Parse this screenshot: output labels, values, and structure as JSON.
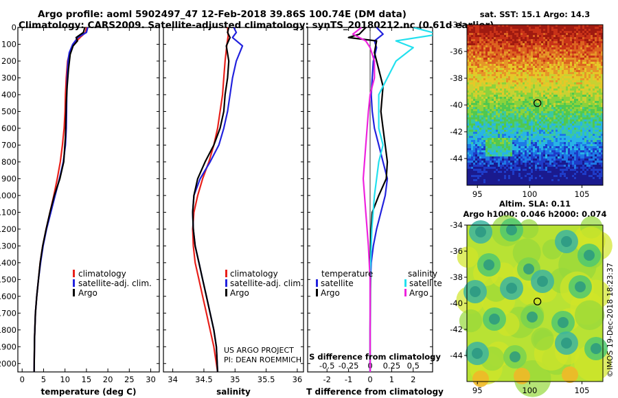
{
  "title_line1": "Argo profile: aoml 5902497_47 12-Feb-2018 39.86S 100.74E (DM data)",
  "title_line2": "Climatology: CARS2009. Satellite-adjusted climatology: synTS_20180212.nc (0.61d earlier)",
  "colors": {
    "climatology": "#e8201a",
    "satellite_adj": "#2222dd",
    "argo": "#000000",
    "salinity_satellite": "#22e0ee",
    "salinity_argo": "#ee22dd"
  },
  "credit": {
    "line1": "US ARGO PROJECT",
    "line2": "PI: DEAN ROEMMICH"
  },
  "imos_stamp": "©IMOS 19-Dec-2018 18:23:37",
  "legend_main": {
    "climatology": "climatology",
    "satellite": "satellite-adj. clim.",
    "argo": "Argo"
  },
  "legend_diff": {
    "temperature": "temperature",
    "salinity": "salinity",
    "satellite": "satellite",
    "argo": "Argo"
  },
  "map_sst": {
    "title": "sat. SST: 15.1 Argo: 14.3",
    "lat_ticks": [
      -34,
      -36,
      -38,
      -40,
      -42,
      -44
    ],
    "lon_ticks": [
      95,
      100,
      105
    ],
    "xlim": [
      94,
      107
    ],
    "ylim": [
      -46,
      -34
    ],
    "profile_location": [
      100.74,
      -39.86
    ]
  },
  "map_sla": {
    "title1": "Altim. SLA: 0.11",
    "title2": "Argo h1000: 0.046 h2000: 0.074",
    "lat_ticks": [
      -34,
      -36,
      -38,
      -40,
      -42,
      -44
    ],
    "lon_ticks": [
      95,
      100,
      105
    ],
    "xlim": [
      94,
      107
    ],
    "ylim": [
      -46,
      -34
    ],
    "profile_location": [
      100.74,
      -39.86
    ]
  },
  "chart_data": [
    {
      "type": "line",
      "name": "temperature",
      "xlabel": "temperature (deg C)",
      "ylabel": "",
      "xlim": [
        -1,
        32
      ],
      "ylim": [
        2050,
        0
      ],
      "xticks": [
        0,
        5,
        10,
        15,
        20,
        25,
        30
      ],
      "yticks": [
        0,
        100,
        200,
        300,
        400,
        500,
        600,
        700,
        800,
        900,
        1000,
        1100,
        1200,
        1300,
        1400,
        1500,
        1600,
        1700,
        1800,
        1900,
        2000
      ],
      "series": [
        {
          "name": "climatology",
          "color": "#e8201a",
          "x": [
            15.0,
            14.8,
            13.5,
            12.0,
            11.1,
            10.6,
            10.3,
            10.1,
            10.0,
            9.8,
            9.4,
            8.9,
            8.2,
            7.4,
            6.5,
            5.6,
            4.8,
            4.2,
            3.8,
            3.4,
            3.1,
            2.9,
            2.8
          ],
          "y": [
            0,
            30,
            60,
            100,
            150,
            200,
            300,
            400,
            500,
            600,
            700,
            800,
            900,
            1000,
            1100,
            1200,
            1300,
            1400,
            1500,
            1600,
            1700,
            1850,
            2050
          ]
        },
        {
          "name": "satellite-adj. clim.",
          "color": "#2222dd",
          "x": [
            15.3,
            15.0,
            13.0,
            11.8,
            11.0,
            10.7,
            10.5,
            10.4,
            10.35,
            10.3,
            10.1,
            9.6,
            8.7,
            7.7,
            6.7,
            5.7,
            4.9,
            4.3,
            3.8,
            3.4,
            3.1,
            2.9,
            2.8
          ],
          "y": [
            0,
            30,
            60,
            100,
            150,
            200,
            300,
            400,
            500,
            600,
            700,
            800,
            900,
            1000,
            1100,
            1200,
            1300,
            1400,
            1500,
            1600,
            1700,
            1850,
            2050
          ]
        },
        {
          "name": "Argo",
          "color": "#000000",
          "x": [
            14.6,
            14.3,
            12.6,
            12.9,
            11.9,
            11.2,
            10.8,
            10.5,
            10.3,
            10.2,
            10.1,
            9.7,
            8.8,
            7.5,
            6.5,
            5.6,
            4.8,
            4.2,
            3.8,
            3.4,
            3.1,
            2.9,
            2.8
          ],
          "y": [
            0,
            30,
            60,
            80,
            110,
            160,
            250,
            350,
            450,
            550,
            650,
            800,
            900,
            1000,
            1100,
            1200,
            1300,
            1400,
            1500,
            1600,
            1700,
            1850,
            2050
          ]
        }
      ]
    },
    {
      "type": "line",
      "name": "salinity",
      "xlabel": "salinity",
      "ylabel": "",
      "xlim": [
        33.85,
        36.1
      ],
      "ylim": [
        2050,
        0
      ],
      "xticks": [
        34,
        34.5,
        35,
        35.5,
        36
      ],
      "xticklabels": [
        "34",
        "34.5",
        "35",
        "35.5",
        "36"
      ],
      "series": [
        {
          "name": "climatology",
          "color": "#e8201a",
          "x": [
            34.88,
            34.89,
            34.87,
            34.84,
            34.82,
            34.8,
            34.76,
            34.72,
            34.66,
            34.58,
            34.48,
            34.4,
            34.34,
            34.32,
            34.33,
            34.36,
            34.42,
            34.48,
            34.54,
            34.6,
            34.66,
            34.7,
            34.72
          ],
          "y": [
            0,
            50,
            100,
            200,
            300,
            400,
            500,
            600,
            700,
            800,
            900,
            1000,
            1100,
            1200,
            1300,
            1400,
            1500,
            1600,
            1700,
            1800,
            1900,
            2000,
            2050
          ]
        },
        {
          "name": "satellite-adj. clim.",
          "color": "#2222dd",
          "x": [
            34.98,
            35.02,
            34.96,
            35.12,
            35.02,
            34.96,
            34.92,
            34.88,
            34.82,
            34.74,
            34.6,
            34.44,
            34.34,
            34.32,
            34.33,
            34.36,
            34.42,
            34.48,
            34.54,
            34.6,
            34.66,
            34.7,
            34.72
          ],
          "y": [
            0,
            30,
            60,
            110,
            200,
            300,
            400,
            500,
            600,
            700,
            800,
            900,
            1000,
            1100,
            1200,
            1300,
            1400,
            1500,
            1600,
            1700,
            1800,
            1900,
            2050
          ]
        },
        {
          "name": "Argo",
          "color": "#000000",
          "x": [
            34.9,
            34.88,
            34.92,
            34.86,
            34.9,
            34.88,
            34.84,
            34.82,
            34.76,
            34.66,
            34.52,
            34.4,
            34.34,
            34.32,
            34.33,
            34.36,
            34.42,
            34.48,
            34.54,
            34.6,
            34.66,
            34.7,
            34.72
          ],
          "y": [
            0,
            30,
            60,
            110,
            200,
            300,
            400,
            500,
            600,
            700,
            800,
            900,
            1000,
            1100,
            1200,
            1300,
            1400,
            1500,
            1600,
            1700,
            1800,
            1900,
            2050
          ]
        }
      ]
    },
    {
      "type": "line",
      "name": "difference",
      "xlabel": "T difference from climatology",
      "xlabel_top": "S difference from climatology",
      "xlim": [
        -2.9,
        2.9
      ],
      "ylim": [
        2050,
        0
      ],
      "xticks": [
        -2,
        -1,
        0,
        1,
        2
      ],
      "top_xticks": [
        -0.5,
        -0.25,
        0,
        0.25,
        0.5
      ],
      "top_xticklabels": [
        "-0.5",
        "-0.25",
        "0",
        "0.25",
        "0.5"
      ],
      "series": [
        {
          "name": "temperature satellite",
          "color": "#2222dd",
          "x": [
            0.3,
            0.6,
            0.2,
            0.3,
            0.15,
            0.1,
            0.05,
            0.1,
            0.2,
            0.4,
            0.6,
            0.8,
            0.7,
            0.5,
            0.3,
            0.15,
            0.05,
            0.02,
            0.01,
            0,
            0
          ],
          "y": [
            0,
            40,
            80,
            120,
            200,
            300,
            400,
            500,
            600,
            700,
            800,
            900,
            1000,
            1100,
            1200,
            1300,
            1400,
            1500,
            1600,
            1800,
            2050
          ]
        },
        {
          "name": "temperature Argo",
          "color": "#000000",
          "x": [
            -0.2,
            -0.5,
            -1.0,
            0.3,
            0.2,
            0.4,
            0.6,
            0.5,
            0.6,
            0.7,
            0.8,
            0.75,
            0.4,
            0.1,
            0.05,
            0.02,
            0.01,
            0,
            0
          ],
          "y": [
            0,
            40,
            60,
            80,
            150,
            250,
            350,
            500,
            600,
            700,
            800,
            900,
            1000,
            1100,
            1200,
            1300,
            1500,
            1800,
            2050
          ]
        },
        {
          "name": "salinity satellite",
          "color": "#22e0ee",
          "x": [
            0.5,
            0.8,
            0.3,
            0.5,
            0.3,
            0.2,
            0.1,
            0.1,
            0.15,
            0.1,
            0.05,
            0.02,
            0,
            0
          ],
          "y": [
            0,
            40,
            80,
            120,
            200,
            300,
            400,
            600,
            700,
            800,
            1000,
            1200,
            1500,
            2050
          ]
        },
        {
          "name": "salinity Argo",
          "color": "#ee22dd",
          "x": [
            -0.1,
            -0.2,
            -0.05,
            0,
            0.05,
            0.05,
            0,
            -0.02,
            -0.05,
            -0.08,
            -0.05,
            -0.02,
            0,
            0,
            0
          ],
          "y": [
            0,
            40,
            80,
            120,
            200,
            300,
            400,
            500,
            700,
            900,
            1100,
            1300,
            1500,
            1800,
            2050
          ]
        }
      ]
    }
  ]
}
